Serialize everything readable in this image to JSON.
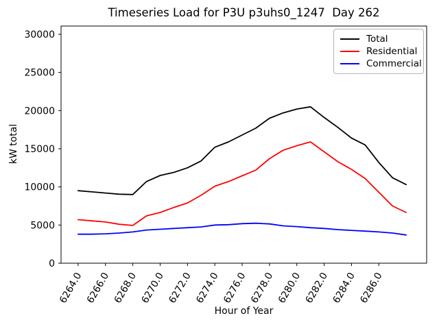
{
  "chart_data": {
    "type": "line",
    "title": "Timeseries Load for P3U p3uhs0_1247  Day 262",
    "xlabel": "Hour of Year",
    "ylabel": "kW total",
    "grid": false,
    "legend_position": "upper right",
    "xlim": [
      6262.75,
      6289.5
    ],
    "ylim": [
      0,
      31080
    ],
    "xticks": [
      6264,
      6266,
      6268,
      6270,
      6272,
      6274,
      6276,
      6278,
      6280,
      6282,
      6284,
      6286
    ],
    "xtick_labels": [
      "6264.0",
      "6266.0",
      "6268.0",
      "6270.0",
      "6272.0",
      "6274.0",
      "6276.0",
      "6278.0",
      "6280.0",
      "6282.0",
      "6284.0",
      "6286.0"
    ],
    "yticks": [
      0,
      5000,
      10000,
      15000,
      20000,
      25000,
      30000
    ],
    "ytick_labels": [
      "0",
      "5000",
      "10000",
      "15000",
      "20000",
      "25000",
      "30000"
    ],
    "x": [
      6264,
      6265,
      6266,
      6267,
      6268,
      6269,
      6270,
      6271,
      6272,
      6273,
      6274,
      6275,
      6276,
      6277,
      6278,
      6279,
      6280,
      6281,
      6282,
      6283,
      6284,
      6285,
      6286,
      6287,
      6288
    ],
    "series": [
      {
        "name": "Total",
        "color": "#000000",
        "values": [
          9500,
          9350,
          9200,
          9050,
          9000,
          10700,
          11500,
          11900,
          12500,
          13400,
          15200,
          15900,
          16800,
          17700,
          19000,
          19700,
          20200,
          20500,
          19100,
          17800,
          16400,
          15500,
          13200,
          11200,
          10300
        ]
      },
      {
        "name": "Residential",
        "color": "#ff0000",
        "values": [
          5700,
          5550,
          5400,
          5100,
          4950,
          6200,
          6650,
          7300,
          7900,
          8900,
          10100,
          10700,
          11450,
          12200,
          13700,
          14800,
          15400,
          15900,
          14600,
          13300,
          12300,
          11100,
          9300,
          7500,
          6650
        ]
      },
      {
        "name": "Commercial",
        "color": "#0000ff",
        "values": [
          3800,
          3800,
          3850,
          3950,
          4100,
          4350,
          4450,
          4550,
          4650,
          4750,
          5000,
          5050,
          5180,
          5240,
          5150,
          4900,
          4800,
          4650,
          4550,
          4400,
          4300,
          4200,
          4100,
          3950,
          3700
        ]
      }
    ]
  }
}
